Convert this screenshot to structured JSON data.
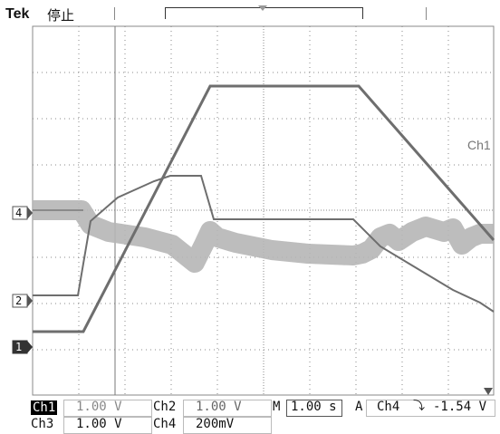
{
  "header": {
    "brand": "Tek",
    "acq_state": "停止"
  },
  "channels": {
    "ch1_label": "Ch1",
    "ch1_scale": "1.00 V",
    "ch2_label": "Ch2",
    "ch2_scale": "1.00 V",
    "ch3_label": "Ch3",
    "ch3_scale": "1.00 V",
    "ch4_label": "Ch4",
    "ch4_scale": "200mV"
  },
  "timebase": {
    "label": "M",
    "value": "1.00 s"
  },
  "trigger": {
    "label": "A",
    "source": "Ch4",
    "slope_symbol": "⤵",
    "level": "-1.54 V"
  },
  "markers": {
    "ch1": "1",
    "ch2": "2",
    "ch4": "4",
    "trace_label": "Ch1"
  },
  "colors": {
    "trace_dark": "#6e6e6e",
    "trace_noise": "#b6b6b6",
    "grid": "#888888",
    "background": "#ffffff"
  }
}
